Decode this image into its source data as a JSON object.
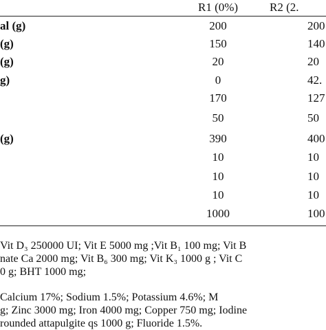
{
  "table": {
    "columns": [
      "R1 (0%)",
      "R2 (2."
    ],
    "rows": [
      {
        "label": "al (g)",
        "r1": "200",
        "r2": "200"
      },
      {
        "label": "(g)",
        "r1": "150",
        "r2": "140"
      },
      {
        "label": "(g)",
        "r1": "20",
        "r2": "20"
      },
      {
        "label": "g)",
        "r1": "0",
        "r2": "42."
      },
      {
        "label": "",
        "r1": "170",
        "r2": "127"
      },
      {
        "label": "",
        "r1": "50",
        "r2": "50"
      },
      {
        "label": "(g)",
        "r1": "390",
        "r2": "400"
      },
      {
        "label": "",
        "r1": "10",
        "r2": "10"
      },
      {
        "label": "",
        "r1": "10",
        "r2": "10"
      },
      {
        "label": "",
        "r1": "10",
        "r2": "10"
      },
      {
        "label": "",
        "r1": "1000",
        "r2": "100"
      }
    ]
  },
  "notes": {
    "vitamins": [
      "Vit D₃ 250000 UI; Vit E 5000 mg ;Vit B₁ 100 mg; Vit B",
      "nate Ca 2000 mg; Vit B₆ 300 mg; Vit K₃ 1000 g ; Vit C",
      "0 g; BHT 1000 mg;"
    ],
    "minerals": [
      "Calcium  17%;  Sodium  1.5%;  Potassium  4.6%;  M",
      "g; Zinc 3000 mg; Iron 4000 mg; Copper 750 mg; Iodine",
      "rounded attapulgite qs 1000 g; Fluoride 1.5%."
    ]
  }
}
